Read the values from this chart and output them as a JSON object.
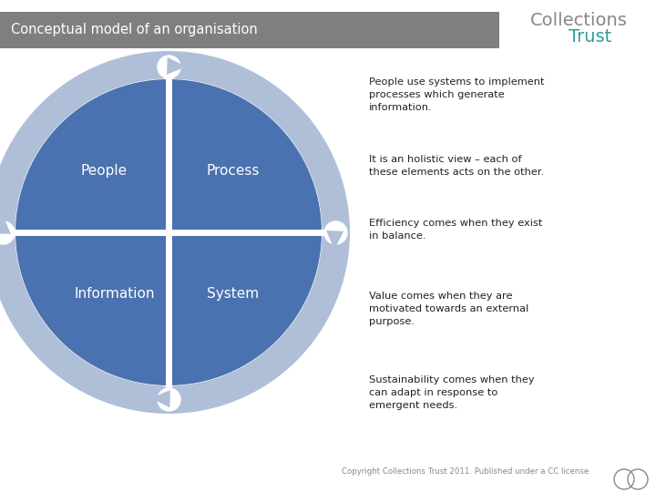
{
  "title": "Conceptual model of an organisation",
  "title_bg": "#7f7f7f",
  "title_color": "#ffffff",
  "bg_color": "#ffffff",
  "brand_collections": "Collections",
  "brand_trust": "Trust",
  "brand_color_collections": "#888888",
  "brand_color_trust": "#2e9e9e",
  "quadrant_labels": [
    "People",
    "Process",
    "Information",
    "System"
  ],
  "quadrant_color": "#4a72b0",
  "arrow_ring_color": "#b0bfd8",
  "divider_color": "#ffffff",
  "text_color": "#222222",
  "para1": "People use systems to implement\nprocesses which generate\ninformation.",
  "para2": "It is an holistic view – each of\nthese elements acts on the other.",
  "para3": "Efficiency comes when they exist\nin balance.",
  "para4": "Value comes when they are\nmotivated towards an external\npurpose.",
  "para5": "Sustainability comes when they\ncan adapt in response to\nemergent needs.",
  "copyright": "Copyright Collections Trust 2011. Published under a CC license"
}
